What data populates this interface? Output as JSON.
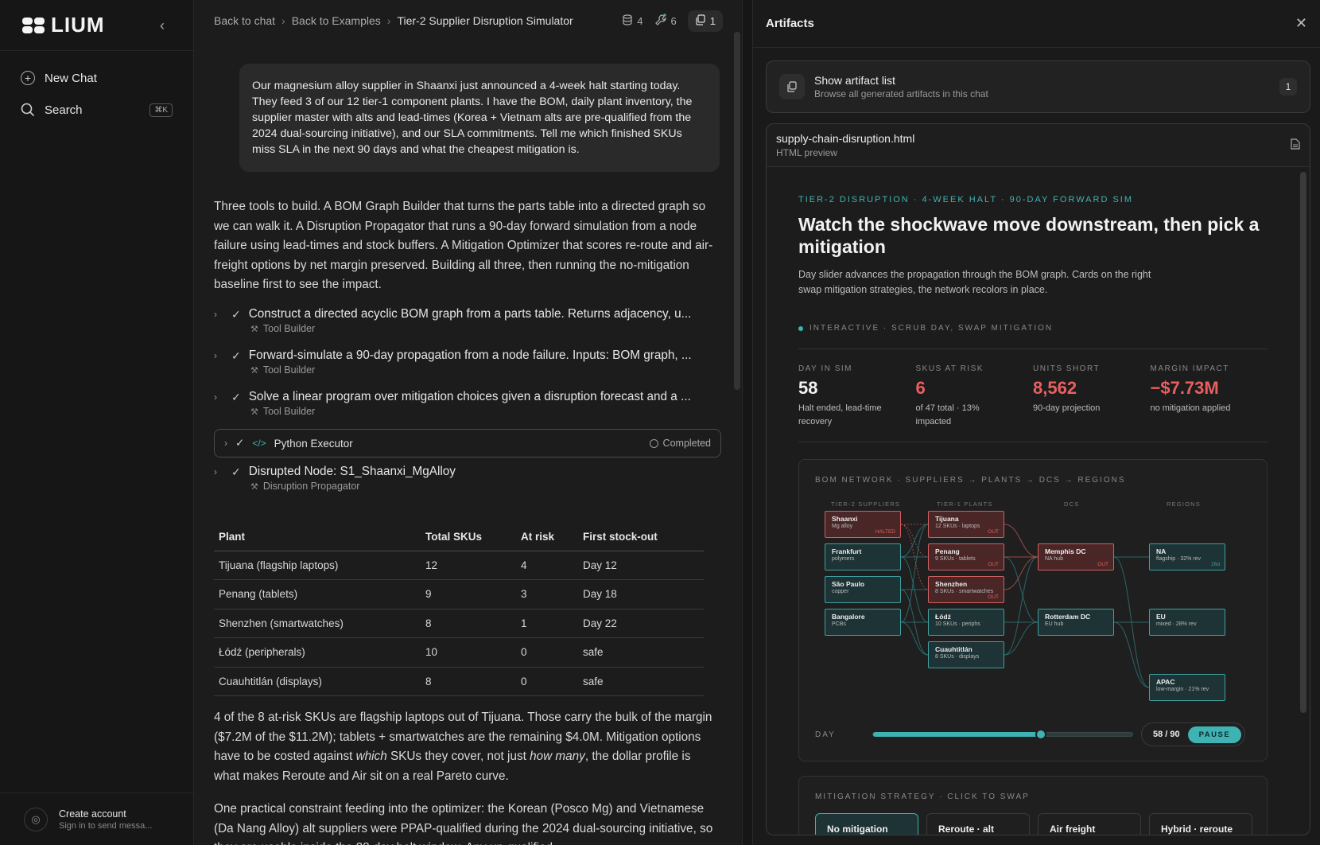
{
  "sidebar": {
    "logo": "LIUM",
    "new_chat": "New Chat",
    "search": "Search",
    "search_kbd": "⌘K",
    "footer_title": "Create account",
    "footer_sub": "Sign in to send messa..."
  },
  "topbar": {
    "crumbs": [
      "Back to chat",
      "Back to Examples",
      "Tier-2 Supplier Disruption Simulator"
    ],
    "db_count": "4",
    "tools_count": "6",
    "artifacts_count": "1"
  },
  "chat": {
    "user_message": "Our magnesium alloy supplier in Shaanxi just announced a 4-week halt starting today. They feed 3 of our 12 tier-1 component plants. I have the BOM, daily plant inventory, the supplier master with alts and lead-times (Korea + Vietnam alts are pre-qualified from the 2024 dual-sourcing initiative), and our SLA commitments. Tell me which finished SKUs miss SLA in the next 90 days and what the cheapest mitigation is.",
    "assistant_intro": "Three tools to build. A BOM Graph Builder that turns the parts table into a directed graph so we can walk it. A Disruption Propagator that runs a 90-day forward simulation from a node failure using lead-times and stock buffers. A Mitigation Optimizer that scores re-route and air-freight options by net margin preserved. Building all three, then running the no-mitigation baseline first to see the impact.",
    "tools": [
      {
        "text": "Construct a directed acyclic BOM graph from a parts table. Returns adjacency, u...",
        "sub": "Tool Builder"
      },
      {
        "text": "Forward-simulate a 90-day propagation from a node failure. Inputs: BOM graph, ...",
        "sub": "Tool Builder"
      },
      {
        "text": "Solve a linear program over mitigation choices given a disruption forecast and a ...",
        "sub": "Tool Builder"
      }
    ],
    "python": {
      "label": "Python Executor",
      "status": "Completed"
    },
    "disrupted": {
      "text": "Disrupted Node: S1_Shaanxi_MgAlloy",
      "sub": "Disruption Propagator"
    },
    "table": {
      "headers": [
        "Plant",
        "Total SKUs",
        "At risk",
        "First stock-out"
      ],
      "rows": [
        [
          "Tijuana (flagship laptops)",
          "12",
          "4",
          "Day 12"
        ],
        [
          "Penang (tablets)",
          "9",
          "3",
          "Day 18"
        ],
        [
          "Shenzhen (smartwatches)",
          "8",
          "1",
          "Day 22"
        ],
        [
          "Łódź (peripherals)",
          "10",
          "0",
          "safe"
        ],
        [
          "Cuauhtitlán (displays)",
          "8",
          "0",
          "safe"
        ]
      ]
    },
    "para2_a": "4 of the 8 at-risk SKUs are flagship laptops out of Tijuana. Those carry the bulk of the margin ($7.2M of the $11.2M); tablets + smartwatches are the remaining $4.0M. Mitigation options have to be costed against ",
    "para2_em1": "which",
    "para2_b": " SKUs they cover, not just ",
    "para2_em2": "how many",
    "para2_c": ", the dollar profile is what makes Reroute and Air sit on a real Pareto curve.",
    "para3": "One practical constraint feeding into the optimizer: the Korean (Posco Mg) and Vietnamese (Da Nang Alloy) alt suppliers were PPAP-qualified during the 2024 dual-sourcing initiative, so they are usable inside the 28-day halt window. Any un-qualified"
  },
  "artifacts": {
    "title": "Artifacts",
    "list_title": "Show artifact list",
    "list_sub": "Browse all generated artifacts in this chat",
    "list_count": "1",
    "file_name": "supply-chain-disruption.html",
    "file_sub": "HTML preview"
  },
  "preview": {
    "eyebrow": "TIER-2 DISRUPTION · 4-WEEK HALT · 90-DAY FORWARD SIM",
    "title": "Watch the shockwave move downstream, then pick a mitigation",
    "desc": "Day slider advances the propagation through the BOM graph. Cards on the right swap mitigation strategies, the network recolors in place.",
    "interactive": "INTERACTIVE · SCRUB DAY, SWAP MITIGATION",
    "stats": [
      {
        "label": "DAY IN SIM",
        "value": "58",
        "sub": "Halt ended, lead-time recovery",
        "red": false
      },
      {
        "label": "SKUS AT RISK",
        "value": "6",
        "sub": "of 47 total · 13% impacted",
        "red": true
      },
      {
        "label": "UNITS SHORT",
        "value": "8,562",
        "sub": "90-day projection",
        "red": true
      },
      {
        "label": "MARGIN IMPACT",
        "value": "−$7.73M",
        "sub": "no mitigation applied",
        "red": true
      }
    ],
    "bom_title": "BOM NETWORK · SUPPLIERS → PLANTS → DCS → REGIONS",
    "columns": [
      "TIER-2 SUPPLIERS",
      "TIER-1 PLANTS",
      "DCS",
      "REGIONS"
    ],
    "suppliers": [
      {
        "name": "Shaanxi",
        "sub": "Mg alloy",
        "tag": "HALTED",
        "bad": true
      },
      {
        "name": "Frankfurt",
        "sub": "polymers",
        "tag": "",
        "bad": false
      },
      {
        "name": "São Paulo",
        "sub": "copper",
        "tag": "",
        "bad": false
      },
      {
        "name": "Bangalore",
        "sub": "PCBs",
        "tag": "",
        "bad": false
      }
    ],
    "plants": [
      {
        "name": "Tijuana",
        "sub": "12 SKUs · laptops",
        "tag": "OUT",
        "bad": true
      },
      {
        "name": "Penang",
        "sub": "9 SKUs · tablets",
        "tag": "OUT",
        "bad": true
      },
      {
        "name": "Shenzhen",
        "sub": "8 SKUs · smartwatches",
        "tag": "OUT",
        "bad": true
      },
      {
        "name": "Łódź",
        "sub": "10 SKUs · periphs",
        "tag": "",
        "bad": false
      },
      {
        "name": "Cuauhtitlán",
        "sub": "8 SKUs · displays",
        "tag": "",
        "bad": false
      }
    ],
    "dcs": [
      {
        "name": "Memphis DC",
        "sub": "NA hub",
        "tag": "OUT",
        "bad": true
      },
      {
        "name": "Rotterdam DC",
        "sub": "EU hub",
        "tag": "",
        "bad": false
      }
    ],
    "regions": [
      {
        "name": "NA",
        "sub": "flagship · 32% rev",
        "tag": "26d",
        "bad": false
      },
      {
        "name": "EU",
        "sub": "mixed · 28% rev",
        "tag": "",
        "bad": false
      },
      {
        "name": "APAC",
        "sub": "low-margin · 21% rev",
        "tag": "",
        "bad": false
      }
    ],
    "day_label": "DAY",
    "day_value": 58,
    "day_max": 90,
    "day_readout": "58 / 90",
    "pause": "PAUSE",
    "mit_title": "MITIGATION STRATEGY · CLICK TO SWAP",
    "mit_cards": [
      "No mitigation",
      "Reroute · alt supplier",
      "Air freight flagship",
      "Hybrid · reroute + air"
    ],
    "accent": "#3fb3b3",
    "alert": "#e86060"
  }
}
